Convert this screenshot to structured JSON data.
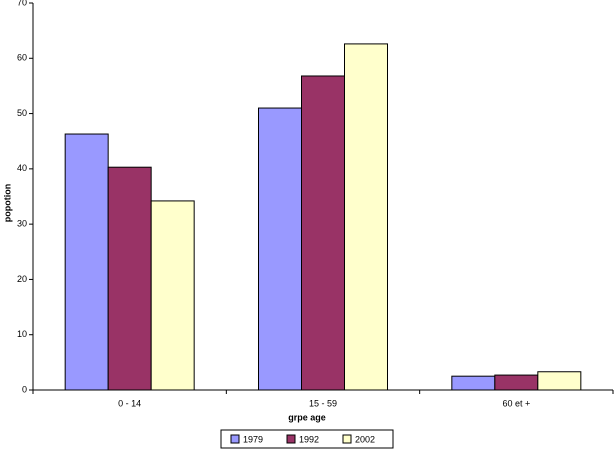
{
  "chart_data": {
    "type": "bar",
    "xlabel": "grpe age",
    "ylabel": "popotion",
    "categories": [
      "0 - 14",
      "15 - 59",
      "60 et +"
    ],
    "series": [
      {
        "name": "1979",
        "color": "#9999ff",
        "values": [
          46.3,
          51.0,
          2.5
        ]
      },
      {
        "name": "1992",
        "color": "#993366",
        "values": [
          40.3,
          56.8,
          2.7
        ]
      },
      {
        "name": "2002",
        "color": "#ffffcc",
        "values": [
          34.2,
          62.6,
          3.3
        ]
      }
    ],
    "ylim": [
      0,
      70
    ],
    "yticks": [
      0,
      10,
      20,
      30,
      40,
      50,
      60,
      70
    ],
    "grid": false,
    "legend": "bottom"
  }
}
